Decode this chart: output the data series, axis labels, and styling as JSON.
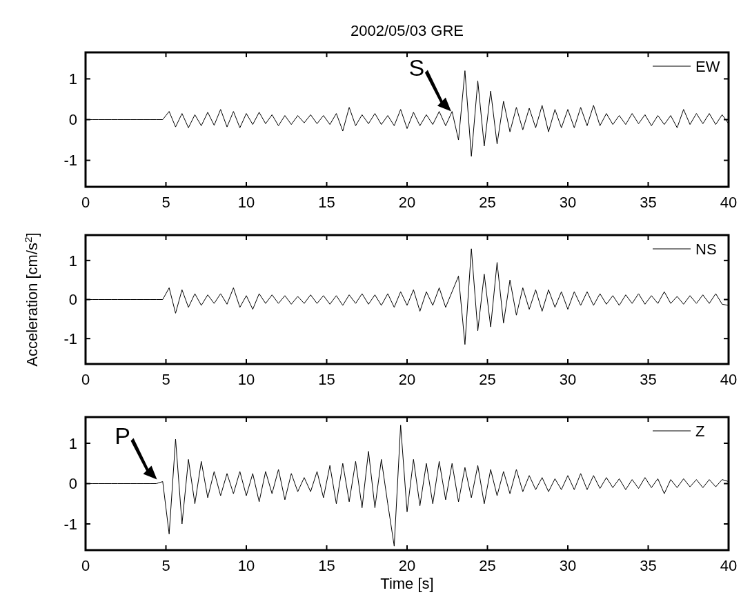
{
  "chart_data": [
    {
      "type": "line",
      "title": "2002/05/03 GRE",
      "legend": "top right",
      "xlim": [
        0,
        40
      ],
      "ylim": [
        -1.65,
        1.65
      ],
      "xticks": [
        0,
        5,
        10,
        15,
        20,
        25,
        30,
        35,
        40
      ],
      "yticks": [
        -1,
        0,
        1
      ],
      "annotations": [
        {
          "text": "S",
          "x": 23,
          "y": 0.1
        }
      ],
      "x": [
        0,
        0.4,
        0.8,
        1.2,
        1.6,
        2,
        2.4,
        2.8,
        3.2,
        3.6,
        4,
        4.4,
        4.8,
        5.2,
        5.6,
        6,
        6.4,
        6.8,
        7.2,
        7.6,
        8,
        8.4,
        8.8,
        9.2,
        9.6,
        10,
        10.4,
        10.8,
        11.2,
        11.6,
        12,
        12.4,
        12.8,
        13.2,
        13.6,
        14,
        14.4,
        14.8,
        15.2,
        15.6,
        16,
        16.4,
        16.8,
        17.2,
        17.6,
        18,
        18.4,
        18.8,
        19.2,
        19.6,
        20,
        20.4,
        20.8,
        21.2,
        21.6,
        22,
        22.4,
        22.8,
        23.2,
        23.6,
        24,
        24.4,
        24.8,
        25.2,
        25.6,
        26,
        26.4,
        26.8,
        27.2,
        27.6,
        28,
        28.4,
        28.8,
        29.2,
        29.6,
        30,
        30.4,
        30.8,
        31.2,
        31.6,
        32,
        32.4,
        32.8,
        33.2,
        33.6,
        34,
        34.4,
        34.8,
        35.2,
        35.6,
        36,
        36.4,
        36.8,
        37.2,
        37.6,
        38,
        38.4,
        38.8,
        39.2,
        39.6,
        40
      ],
      "series": [
        {
          "name": "EW",
          "color": "#000000",
          "values": [
            0,
            0,
            0,
            0,
            0,
            0,
            0,
            0,
            0,
            0,
            0,
            0,
            0,
            0.2,
            -0.18,
            0.15,
            -0.2,
            0.12,
            -0.15,
            0.18,
            -0.14,
            0.25,
            -0.18,
            0.2,
            -0.2,
            0.15,
            -0.12,
            0.18,
            -0.1,
            0.12,
            -0.15,
            0.1,
            -0.12,
            0.1,
            -0.08,
            0.12,
            -0.1,
            0.1,
            -0.12,
            0.15,
            -0.28,
            0.3,
            -0.15,
            0.12,
            -0.1,
            0.15,
            -0.12,
            0.1,
            -0.15,
            0.25,
            -0.22,
            0.18,
            -0.15,
            0.12,
            -0.12,
            0.2,
            -0.15,
            0.2,
            -0.5,
            1.2,
            -0.9,
            0.95,
            -0.65,
            0.7,
            -0.6,
            0.45,
            -0.3,
            0.3,
            -0.25,
            0.28,
            -0.2,
            0.35,
            -0.3,
            0.25,
            -0.2,
            0.25,
            -0.2,
            0.3,
            -0.15,
            0.35,
            -0.15,
            0.15,
            -0.12,
            0.1,
            -0.12,
            0.15,
            -0.1,
            0.12,
            -0.15,
            0.1,
            -0.12,
            0.1,
            -0.2,
            0.25,
            -0.12,
            0.15,
            -0.1,
            0.15,
            -0.12,
            0.12,
            -0.1
          ]
        }
      ]
    },
    {
      "type": "line",
      "ylabel": "Acceleration [cm/s$^{2}$]",
      "legend": "top right",
      "xlim": [
        0,
        40
      ],
      "ylim": [
        -1.65,
        1.65
      ],
      "xticks": [
        0,
        5,
        10,
        15,
        20,
        25,
        30,
        35,
        40
      ],
      "yticks": [
        -1,
        0,
        1
      ],
      "x": [
        0,
        0.4,
        0.8,
        1.2,
        1.6,
        2,
        2.4,
        2.8,
        3.2,
        3.6,
        4,
        4.4,
        4.8,
        5.2,
        5.6,
        6,
        6.4,
        6.8,
        7.2,
        7.6,
        8,
        8.4,
        8.8,
        9.2,
        9.6,
        10,
        10.4,
        10.8,
        11.2,
        11.6,
        12,
        12.4,
        12.8,
        13.2,
        13.6,
        14,
        14.4,
        14.8,
        15.2,
        15.6,
        16,
        16.4,
        16.8,
        17.2,
        17.6,
        18,
        18.4,
        18.8,
        19.2,
        19.6,
        20,
        20.4,
        20.8,
        21.2,
        21.6,
        22,
        22.4,
        22.8,
        23.2,
        23.6,
        24,
        24.4,
        24.8,
        25.2,
        25.6,
        26,
        26.4,
        26.8,
        27.2,
        27.6,
        28,
        28.4,
        28.8,
        29.2,
        29.6,
        30,
        30.4,
        30.8,
        31.2,
        31.6,
        32,
        32.4,
        32.8,
        33.2,
        33.6,
        34,
        34.4,
        34.8,
        35.2,
        35.6,
        36,
        36.4,
        36.8,
        37.2,
        37.6,
        38,
        38.4,
        38.8,
        39.2,
        39.6,
        40
      ],
      "series": [
        {
          "name": "NS",
          "color": "#000000",
          "values": [
            0,
            0,
            0,
            0,
            0,
            0,
            0,
            0,
            0,
            0,
            0,
            0,
            0,
            0.3,
            -0.35,
            0.25,
            -0.2,
            0.15,
            -0.15,
            0.12,
            -0.1,
            0.15,
            -0.12,
            0.3,
            -0.2,
            0.1,
            -0.25,
            0.15,
            -0.1,
            0.12,
            -0.1,
            0.1,
            -0.12,
            0.08,
            -0.1,
            0.12,
            -0.1,
            0.1,
            -0.12,
            0.1,
            -0.15,
            0.12,
            -0.1,
            0.15,
            -0.12,
            0.12,
            -0.15,
            0.15,
            -0.2,
            0.2,
            -0.15,
            0.25,
            -0.3,
            0.2,
            -0.15,
            0.3,
            -0.2,
            0.2,
            0.6,
            -1.15,
            1.3,
            -0.8,
            0.65,
            -0.7,
            0.95,
            -0.6,
            0.5,
            -0.4,
            0.3,
            -0.25,
            0.25,
            -0.3,
            0.25,
            -0.2,
            0.2,
            -0.25,
            0.2,
            -0.15,
            0.2,
            -0.15,
            0.15,
            -0.12,
            0.1,
            -0.15,
            0.12,
            -0.1,
            0.15,
            -0.12,
            0.1,
            -0.1,
            0.2,
            -0.1,
            0.08,
            -0.12,
            0.1,
            -0.1,
            0.12,
            -0.1,
            0.15,
            -0.12,
            -0.15
          ]
        }
      ]
    },
    {
      "type": "line",
      "xlabel": "Time [s]",
      "legend": "top right",
      "xlim": [
        0,
        40
      ],
      "ylim": [
        -1.65,
        1.65
      ],
      "xticks": [
        0,
        5,
        10,
        15,
        20,
        25,
        30,
        35,
        40
      ],
      "yticks": [
        -1,
        0,
        1
      ],
      "annotations": [
        {
          "text": "P",
          "x": 4.7,
          "y": 0
        }
      ],
      "x": [
        0,
        0.4,
        0.8,
        1.2,
        1.6,
        2,
        2.4,
        2.8,
        3.2,
        3.6,
        4,
        4.4,
        4.8,
        5.2,
        5.6,
        6,
        6.4,
        6.8,
        7.2,
        7.6,
        8,
        8.4,
        8.8,
        9.2,
        9.6,
        10,
        10.4,
        10.8,
        11.2,
        11.6,
        12,
        12.4,
        12.8,
        13.2,
        13.6,
        14,
        14.4,
        14.8,
        15.2,
        15.6,
        16,
        16.4,
        16.8,
        17.2,
        17.6,
        18,
        18.4,
        18.8,
        19.2,
        19.6,
        20,
        20.4,
        20.8,
        21.2,
        21.6,
        22,
        22.4,
        22.8,
        23.2,
        23.6,
        24,
        24.4,
        24.8,
        25.2,
        25.6,
        26,
        26.4,
        26.8,
        27.2,
        27.6,
        28,
        28.4,
        28.8,
        29.2,
        29.6,
        30,
        30.4,
        30.8,
        31.2,
        31.6,
        32,
        32.4,
        32.8,
        33.2,
        33.6,
        34,
        34.4,
        34.8,
        35.2,
        35.6,
        36,
        36.4,
        36.8,
        37.2,
        37.6,
        38,
        38.4,
        38.8,
        39.2,
        39.6,
        40
      ],
      "series": [
        {
          "name": "Z",
          "color": "#000000",
          "values": [
            0,
            0,
            0,
            0,
            0,
            0,
            0,
            0,
            0,
            0,
            0,
            0,
            0.05,
            -1.25,
            1.1,
            -1.0,
            0.6,
            -0.5,
            0.55,
            -0.35,
            0.3,
            -0.3,
            0.25,
            -0.25,
            0.3,
            -0.3,
            0.25,
            -0.45,
            0.3,
            -0.25,
            0.35,
            -0.4,
            0.25,
            -0.2,
            0.15,
            -0.2,
            0.3,
            -0.35,
            0.45,
            -0.5,
            0.5,
            -0.45,
            0.55,
            -0.6,
            0.8,
            -0.6,
            0.6,
            -0.5,
            -1.55,
            1.45,
            -0.7,
            0.6,
            -0.55,
            0.5,
            -0.5,
            0.55,
            -0.4,
            0.5,
            -0.45,
            0.4,
            -0.35,
            0.45,
            -0.5,
            0.35,
            -0.3,
            0.3,
            -0.25,
            0.35,
            -0.2,
            0.2,
            -0.15,
            0.15,
            -0.2,
            0.12,
            -0.15,
            0.2,
            -0.15,
            0.25,
            -0.15,
            0.2,
            -0.12,
            0.15,
            -0.1,
            0.12,
            -0.15,
            0.1,
            -0.12,
            0.15,
            -0.1,
            0.12,
            -0.25,
            0.1,
            -0.1,
            0.12,
            -0.08,
            0.1,
            -0.1,
            0.1,
            -0.08,
            0.1,
            0.05
          ]
        }
      ]
    }
  ]
}
